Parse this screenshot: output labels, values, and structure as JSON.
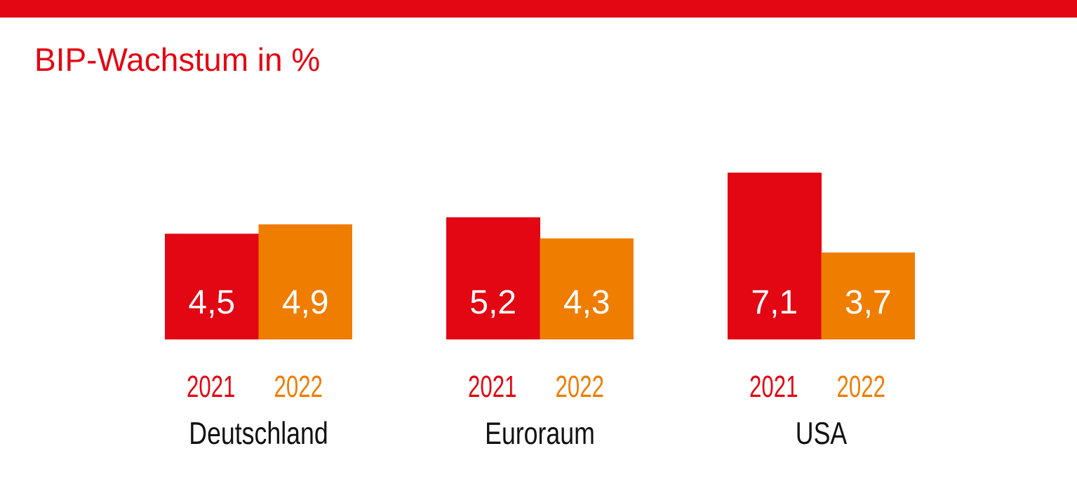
{
  "colors": {
    "red": "#e30613",
    "orange": "#ef7d00",
    "accent_bar": "#e30613",
    "text": "#111111",
    "label_text": "#ffffff"
  },
  "chart_data": {
    "type": "bar",
    "title": "BIP-Wachstum in %",
    "xlabel": "",
    "ylabel": "",
    "ylim": [
      0,
      7.1
    ],
    "grid": false,
    "legend": "none",
    "categories": [
      "Deutschland",
      "Euroraum",
      "USA"
    ],
    "series": [
      {
        "name": "2021",
        "color": "#e30613",
        "values": [
          4.5,
          5.2,
          7.1
        ],
        "labels": [
          "4,5",
          "5,2",
          "7,1"
        ]
      },
      {
        "name": "2022",
        "color": "#ef7d00",
        "values": [
          4.9,
          4.3,
          3.7
        ],
        "labels": [
          "4,9",
          "4,3",
          "3,7"
        ]
      }
    ]
  }
}
